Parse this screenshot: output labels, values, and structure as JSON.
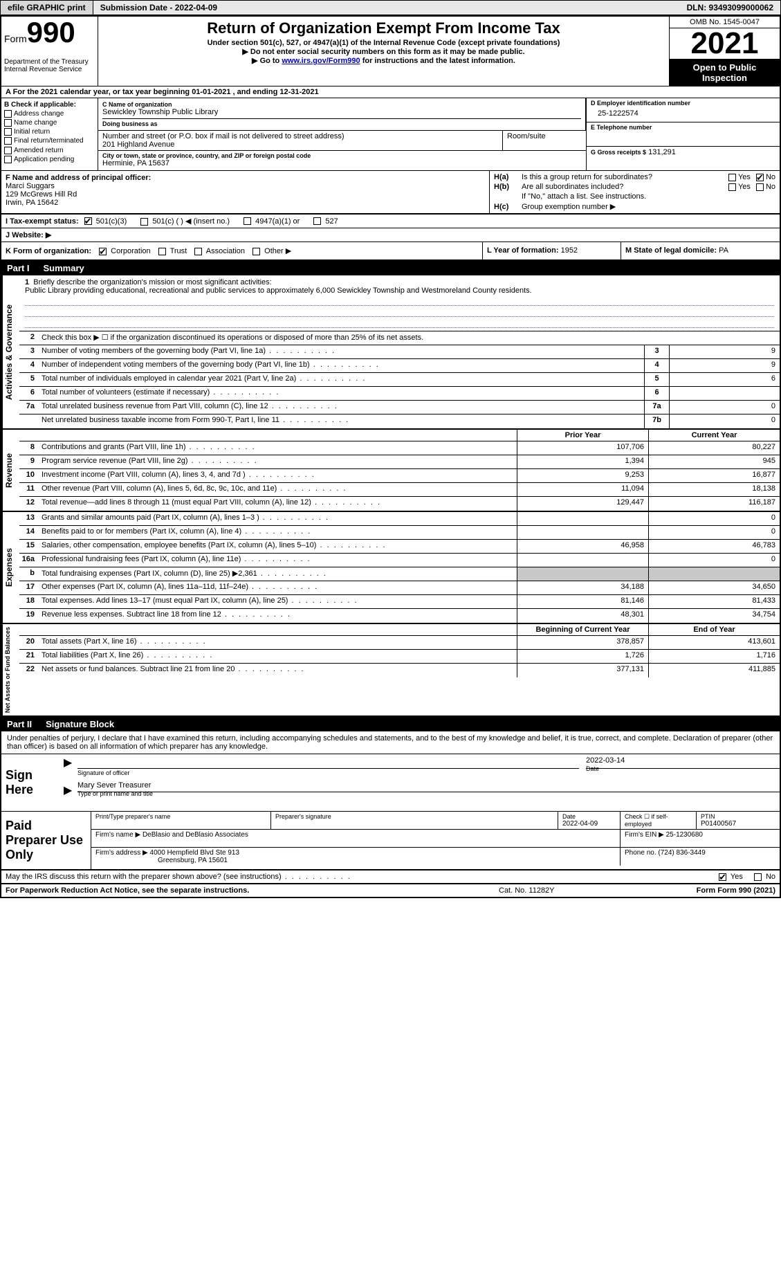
{
  "top_bar": {
    "efile_label": "efile GRAPHIC print",
    "submission": "Submission Date - 2022-04-09",
    "dln": "DLN: 93493099000062"
  },
  "header": {
    "form_prefix": "Form",
    "form_number": "990",
    "dept": "Department of the Treasury",
    "irs": "Internal Revenue Service",
    "title": "Return of Organization Exempt From Income Tax",
    "subtitle": "Under section 501(c), 527, or 4947(a)(1) of the Internal Revenue Code (except private foundations)",
    "note1": "▶ Do not enter social security numbers on this form as it may be made public.",
    "note2_pre": "▶ Go to ",
    "note2_link": "www.irs.gov/Form990",
    "note2_post": " for instructions and the latest information.",
    "omb": "OMB No. 1545-0047",
    "year": "2021",
    "open_public": "Open to Public Inspection"
  },
  "row_a": "A  For the 2021 calendar year, or tax year beginning 01-01-2021    , and ending 12-31-2021",
  "col_b": {
    "label": "B Check if applicable:",
    "items": [
      "Address change",
      "Name change",
      "Initial return",
      "Final return/terminated",
      "Amended return",
      "Application pending"
    ]
  },
  "col_c": {
    "name_label": "C Name of organization",
    "name": "Sewickley Township Public Library",
    "dba_label": "Doing business as",
    "dba": "",
    "street_label": "Number and street (or P.O. box if mail is not delivered to street address)",
    "street": "201 Highland Avenue",
    "room_label": "Room/suite",
    "room": "",
    "city_label": "City or town, state or province, country, and ZIP or foreign postal code",
    "city": "Herminie, PA  15637"
  },
  "col_de": {
    "d_label": "D Employer identification number",
    "d_value": "25-1222574",
    "e_label": "E Telephone number",
    "e_value": "",
    "g_label": "G Gross receipts $",
    "g_value": "131,291"
  },
  "f": {
    "label": "F  Name and address of principal officer:",
    "name": "Marci Suggars",
    "street": "129 McGrews Hill Rd",
    "city": "Irwin, PA  15642"
  },
  "h": {
    "a_label": "H(a)",
    "a_text": "Is this a group return for subordinates?",
    "b_label": "H(b)",
    "b_text": "Are all subordinates included?",
    "b_note": "If \"No,\" attach a list. See instructions.",
    "c_label": "H(c)",
    "c_text": "Group exemption number ▶",
    "yes": "Yes",
    "no": "No"
  },
  "i": {
    "label": "I   Tax-exempt status:",
    "opts": [
      "501(c)(3)",
      "501(c) (   ) ◀ (insert no.)",
      "4947(a)(1) or",
      "527"
    ]
  },
  "j": {
    "label": "J   Website: ▶"
  },
  "k": {
    "label": "K Form of organization:",
    "opts": [
      "Corporation",
      "Trust",
      "Association",
      "Other ▶"
    ],
    "l_label": "L Year of formation:",
    "l_value": "1952",
    "m_label": "M State of legal domicile:",
    "m_value": "PA"
  },
  "part1": {
    "num": "Part I",
    "title": "Summary"
  },
  "side_labels": {
    "gov": "Activities & Governance",
    "rev": "Revenue",
    "exp": "Expenses",
    "net": "Net Assets or Fund Balances"
  },
  "line1": {
    "n": "1",
    "label": "Briefly describe the organization's mission or most significant activities:",
    "text": "Public Library providing educational, recreational and public services to approximately 6,000 Sewickley Township and Westmoreland County residents."
  },
  "line2": {
    "n": "2",
    "text": "Check this box ▶ ☐  if the organization discontinued its operations or disposed of more than 25% of its net assets."
  },
  "gov_lines": [
    {
      "n": "3",
      "text": "Number of voting members of the governing body (Part VI, line 1a)",
      "box": "3",
      "val": "9"
    },
    {
      "n": "4",
      "text": "Number of independent voting members of the governing body (Part VI, line 1b)",
      "box": "4",
      "val": "9"
    },
    {
      "n": "5",
      "text": "Total number of individuals employed in calendar year 2021 (Part V, line 2a)",
      "box": "5",
      "val": "6"
    },
    {
      "n": "6",
      "text": "Total number of volunteers (estimate if necessary)",
      "box": "6",
      "val": ""
    },
    {
      "n": "7a",
      "text": "Total unrelated business revenue from Part VIII, column (C), line 12",
      "box": "7a",
      "val": "0"
    },
    {
      "n": "",
      "text": "Net unrelated business taxable income from Form 990-T, Part I, line 11",
      "box": "7b",
      "val": "0"
    }
  ],
  "col_headers": {
    "prior": "Prior Year",
    "current": "Current Year",
    "begin": "Beginning of Current Year",
    "end": "End of Year"
  },
  "rev_lines": [
    {
      "n": "8",
      "text": "Contributions and grants (Part VIII, line 1h)",
      "prior": "107,706",
      "current": "80,227"
    },
    {
      "n": "9",
      "text": "Program service revenue (Part VIII, line 2g)",
      "prior": "1,394",
      "current": "945"
    },
    {
      "n": "10",
      "text": "Investment income (Part VIII, column (A), lines 3, 4, and 7d )",
      "prior": "9,253",
      "current": "16,877"
    },
    {
      "n": "11",
      "text": "Other revenue (Part VIII, column (A), lines 5, 6d, 8c, 9c, 10c, and 11e)",
      "prior": "11,094",
      "current": "18,138"
    },
    {
      "n": "12",
      "text": "Total revenue—add lines 8 through 11 (must equal Part VIII, column (A), line 12)",
      "prior": "129,447",
      "current": "116,187"
    }
  ],
  "exp_lines": [
    {
      "n": "13",
      "text": "Grants and similar amounts paid (Part IX, column (A), lines 1–3 )",
      "prior": "",
      "current": "0"
    },
    {
      "n": "14",
      "text": "Benefits paid to or for members (Part IX, column (A), line 4)",
      "prior": "",
      "current": "0"
    },
    {
      "n": "15",
      "text": "Salaries, other compensation, employee benefits (Part IX, column (A), lines 5–10)",
      "prior": "46,958",
      "current": "46,783"
    },
    {
      "n": "16a",
      "text": "Professional fundraising fees (Part IX, column (A), line 11e)",
      "prior": "",
      "current": "0"
    },
    {
      "n": "b",
      "text": "Total fundraising expenses (Part IX, column (D), line 25) ▶2,361",
      "prior": "SHADE",
      "current": "SHADE"
    },
    {
      "n": "17",
      "text": "Other expenses (Part IX, column (A), lines 11a–11d, 11f–24e)",
      "prior": "34,188",
      "current": "34,650"
    },
    {
      "n": "18",
      "text": "Total expenses. Add lines 13–17 (must equal Part IX, column (A), line 25)",
      "prior": "81,146",
      "current": "81,433"
    },
    {
      "n": "19",
      "text": "Revenue less expenses. Subtract line 18 from line 12",
      "prior": "48,301",
      "current": "34,754"
    }
  ],
  "net_lines": [
    {
      "n": "20",
      "text": "Total assets (Part X, line 16)",
      "prior": "378,857",
      "current": "413,601"
    },
    {
      "n": "21",
      "text": "Total liabilities (Part X, line 26)",
      "prior": "1,726",
      "current": "1,716"
    },
    {
      "n": "22",
      "text": "Net assets or fund balances. Subtract line 21 from line 20",
      "prior": "377,131",
      "current": "411,885"
    }
  ],
  "part2": {
    "num": "Part II",
    "title": "Signature Block"
  },
  "sig": {
    "penalty": "Under penalties of perjury, I declare that I have examined this return, including accompanying schedules and statements, and to the best of my knowledge and belief, it is true, correct, and complete. Declaration of preparer (other than officer) is based on all information of which preparer has any knowledge.",
    "sign_here": "Sign Here",
    "sig_officer": "Signature of officer",
    "sig_date": "2022-03-14",
    "date_label": "Date",
    "name_title": "Mary Sever  Treasurer",
    "name_title_label": "Type or print name and title"
  },
  "paid": {
    "label": "Paid Preparer Use Only",
    "print_label": "Print/Type preparer's name",
    "print_val": "",
    "sig_label": "Preparer's signature",
    "date_label": "Date",
    "date_val": "2022-04-09",
    "check_label": "Check ☐ if self-employed",
    "ptin_label": "PTIN",
    "ptin_val": "P01400567",
    "firm_name_label": "Firm's name    ▶",
    "firm_name": "DeBlasio and DeBlasio Associates",
    "firm_ein_label": "Firm's EIN ▶",
    "firm_ein": "25-1230680",
    "firm_addr_label": "Firm's address ▶",
    "firm_addr1": "4000 Hempfield Blvd Ste 913",
    "firm_addr2": "Greensburg, PA  15601",
    "phone_label": "Phone no.",
    "phone": "(724) 836-3449"
  },
  "discuss": {
    "text": "May the IRS discuss this return with the preparer shown above? (see instructions)",
    "yes": "Yes",
    "no": "No"
  },
  "footer": {
    "left": "For Paperwork Reduction Act Notice, see the separate instructions.",
    "mid": "Cat. No. 11282Y",
    "right": "Form 990 (2021)"
  }
}
